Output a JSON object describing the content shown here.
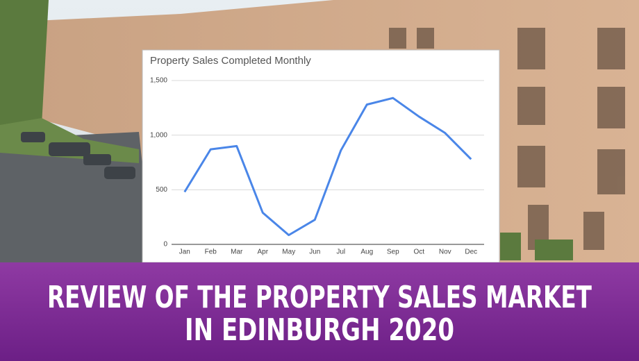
{
  "chart_data": {
    "type": "line",
    "title": "Property Sales Completed Monthly",
    "categories": [
      "Jan",
      "Feb",
      "Mar",
      "Apr",
      "May",
      "Jun",
      "Jul",
      "Aug",
      "Sep",
      "Oct",
      "Nov",
      "Dec"
    ],
    "series": [
      {
        "color": "#4a86e8",
        "values": [
          480,
          870,
          900,
          290,
          85,
          225,
          860,
          1280,
          1340,
          1170,
          1020,
          780
        ]
      }
    ],
    "ylim": [
      0,
      1500
    ],
    "yticks": [
      0,
      500,
      {
        "value": 1000,
        "label": "1,000"
      },
      {
        "value": 1500,
        "label": "1,500"
      }
    ],
    "grid": true
  },
  "banner": {
    "lines": [
      "REVIEW OF THE PROPERTY SALES MARKET",
      "IN EDINBURGH 2020"
    ]
  }
}
